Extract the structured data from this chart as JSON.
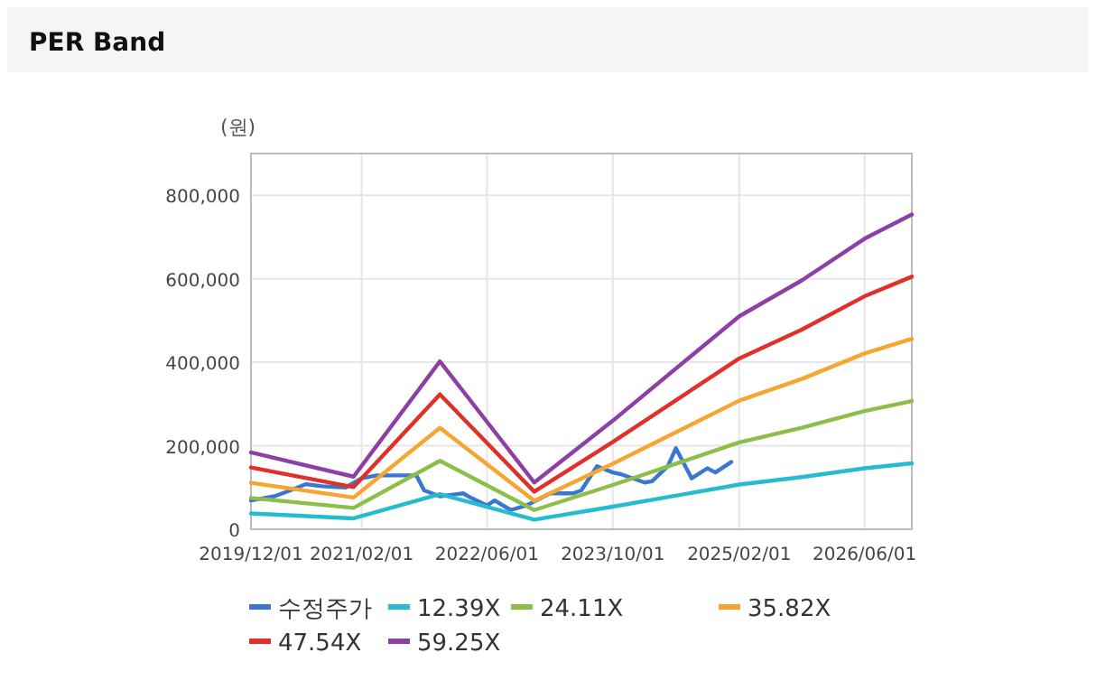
{
  "chart_data": {
    "type": "line",
    "title": "PER Band",
    "ylabel": "(원)",
    "xlim": [
      "2019-12-01",
      "2026-12-01"
    ],
    "xticks": [
      {
        "value": "2019-12-01",
        "label": "2019/12/01"
      },
      {
        "value": "2021-02-01",
        "label": "2021/02/01"
      },
      {
        "value": "2022-06-01",
        "label": "2022/06/01"
      },
      {
        "value": "2023-10-01",
        "label": "2023/10/01"
      },
      {
        "value": "2025-02-01",
        "label": "2025/02/01"
      },
      {
        "value": "2026-06-01",
        "label": "2026/06/01"
      }
    ],
    "ylim": [
      0,
      900000
    ],
    "yticks": [
      0,
      {
        "value": 200000,
        "label": "200,000"
      },
      {
        "value": 400000,
        "label": "400,000"
      },
      {
        "value": 600000,
        "label": "600,000"
      },
      {
        "value": 800000,
        "label": "800,000"
      }
    ],
    "grid": true,
    "legend": "bottom",
    "marker": "none",
    "line_style": "solid",
    "series": [
      {
        "name": "수정주가",
        "color": "#3a78d0",
        "x": [
          "2019-12",
          "2020-03",
          "2020-05",
          "2020-07",
          "2020-09",
          "2020-12",
          "2021-02",
          "2021-04",
          "2021-06",
          "2021-09",
          "2021-10",
          "2021-12",
          "2022-03",
          "2022-04",
          "2022-06",
          "2022-07",
          "2022-09",
          "2022-11",
          "2023-02",
          "2023-05",
          "2023-06",
          "2023-08",
          "2023-10",
          "2023-11",
          "2024-02",
          "2024-03",
          "2024-05",
          "2024-06",
          "2024-08",
          "2024-10",
          "2024-11",
          "2025-01"
        ],
        "values": [
          69000,
          79000,
          93000,
          108000,
          103000,
          100000,
          122000,
          129000,
          129000,
          129000,
          93000,
          79000,
          86000,
          75000,
          57000,
          69000,
          46000,
          57000,
          86000,
          86000,
          93000,
          151000,
          136000,
          132000,
          112000,
          115000,
          151000,
          194000,
          122000,
          146000,
          136000,
          161000
        ]
      },
      {
        "name": "12.39X",
        "color": "#26bcd0",
        "x": [
          "2019-12",
          "2021-01",
          "2021-12",
          "2022-12",
          "2023-10",
          "2025-02",
          "2025-10",
          "2026-06",
          "2026-12"
        ],
        "values": [
          38000,
          26000,
          84000,
          23000,
          54000,
          107000,
          125000,
          146000,
          158000
        ]
      },
      {
        "name": "24.11X",
        "color": "#8cbf4a",
        "x": [
          "2019-12",
          "2021-01",
          "2021-12",
          "2022-12",
          "2023-10",
          "2025-02",
          "2025-10",
          "2026-06",
          "2026-12"
        ],
        "values": [
          75000,
          51000,
          164000,
          46000,
          106000,
          208000,
          243000,
          283000,
          307000
        ]
      },
      {
        "name": "35.82X",
        "color": "#f7a531",
        "x": [
          "2019-12",
          "2021-01",
          "2021-12",
          "2022-12",
          "2023-10",
          "2025-02",
          "2025-10",
          "2026-06",
          "2026-12"
        ],
        "values": [
          111000,
          76000,
          243000,
          68000,
          157000,
          308000,
          360000,
          421000,
          456000
        ]
      },
      {
        "name": "47.54X",
        "color": "#e03028",
        "x": [
          "2019-12",
          "2021-01",
          "2021-12",
          "2022-12",
          "2023-10",
          "2025-02",
          "2025-10",
          "2026-06",
          "2026-12"
        ],
        "values": [
          148000,
          101000,
          323000,
          90000,
          209000,
          409000,
          478000,
          558000,
          605000
        ]
      },
      {
        "name": "59.25X",
        "color": "#8e3fa6",
        "x": [
          "2019-12",
          "2021-01",
          "2021-12",
          "2022-12",
          "2023-10",
          "2025-02",
          "2025-10",
          "2026-06",
          "2026-12"
        ],
        "values": [
          184000,
          126000,
          402000,
          112000,
          260000,
          510000,
          596000,
          696000,
          754000
        ]
      }
    ]
  }
}
